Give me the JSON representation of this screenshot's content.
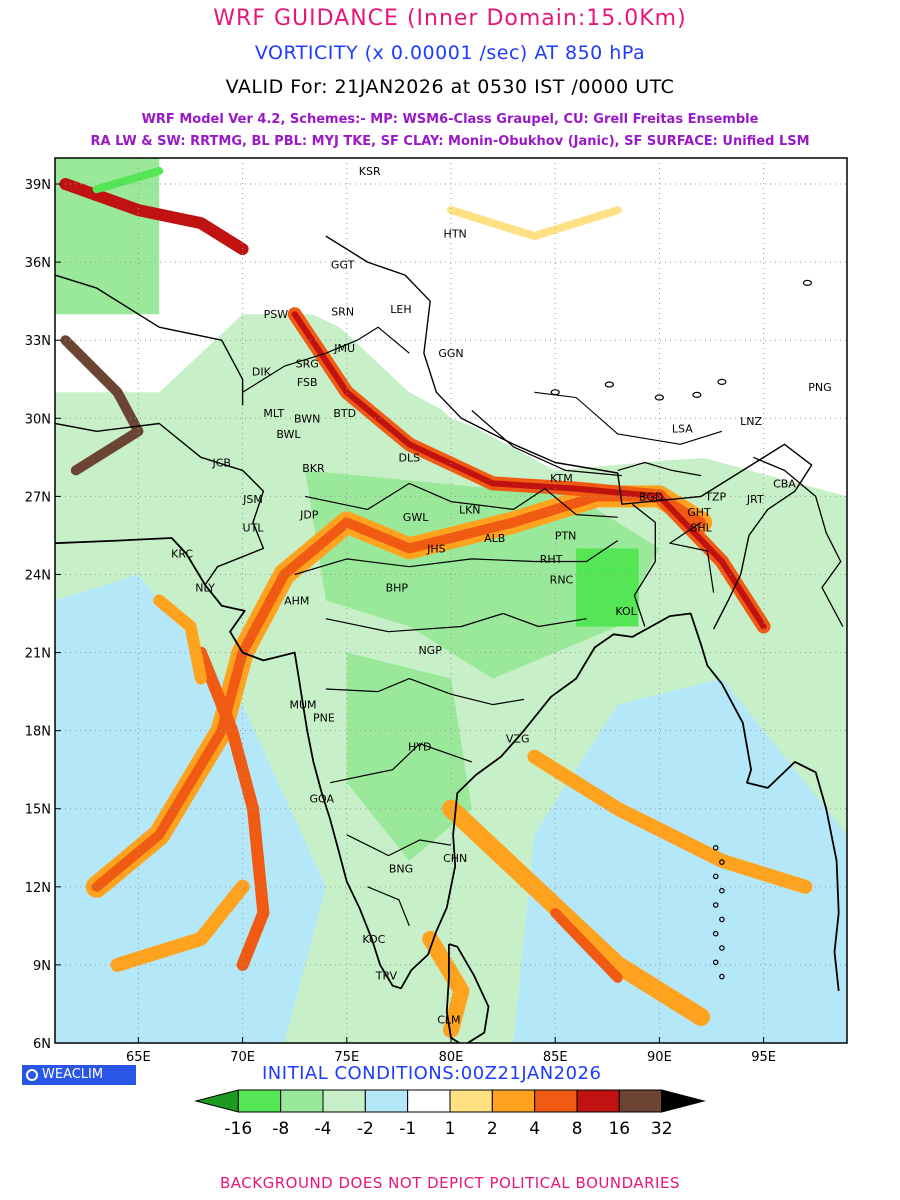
{
  "header": {
    "line1": "WRF GUIDANCE (Inner Domain:15.0Km)",
    "line2": "VORTICITY (x 0.00001 /sec) AT 850 hPa",
    "line3": "VALID For: 21JAN2026 at 0530 IST /0000 UTC",
    "line4": "WRF Model Ver 4.2, Schemes:- MP: WSM6-Class Graupel, CU: Grell Freitas Ensemble",
    "line5": "RA LW & SW: RRTMG, BL PBL: MYJ TKE, SF CLAY: Monin-Obukhov (Janic), SF SURFACE: Unified LSM"
  },
  "map": {
    "lon_range": [
      61,
      99
    ],
    "lat_range": [
      6,
      40
    ],
    "lon_ticks": [
      {
        "value": 65,
        "label": "65E"
      },
      {
        "value": 70,
        "label": "70E"
      },
      {
        "value": 75,
        "label": "75E"
      },
      {
        "value": 80,
        "label": "80E"
      },
      {
        "value": 85,
        "label": "85E"
      },
      {
        "value": 90,
        "label": "90E"
      },
      {
        "value": 95,
        "label": "95E"
      }
    ],
    "lat_ticks": [
      {
        "value": 6,
        "label": "6N"
      },
      {
        "value": 9,
        "label": "9N"
      },
      {
        "value": 12,
        "label": "12N"
      },
      {
        "value": 15,
        "label": "15N"
      },
      {
        "value": 18,
        "label": "18N"
      },
      {
        "value": 21,
        "label": "21N"
      },
      {
        "value": 24,
        "label": "24N"
      },
      {
        "value": 27,
        "label": "27N"
      },
      {
        "value": 30,
        "label": "30N"
      },
      {
        "value": 33,
        "label": "33N"
      },
      {
        "value": 36,
        "label": "36N"
      },
      {
        "value": 39,
        "label": "39N"
      }
    ],
    "stations": [
      {
        "label": "KSR",
        "lon": 76.1,
        "lat": 39.5
      },
      {
        "label": "HTN",
        "lon": 80.2,
        "lat": 37.1
      },
      {
        "label": "GGT",
        "lon": 74.8,
        "lat": 35.9
      },
      {
        "label": "LEH",
        "lon": 77.6,
        "lat": 34.2
      },
      {
        "label": "PSW",
        "lon": 71.6,
        "lat": 34.0
      },
      {
        "label": "SRN",
        "lon": 74.8,
        "lat": 34.1
      },
      {
        "label": "JMU",
        "lon": 74.9,
        "lat": 32.7
      },
      {
        "label": "GGN",
        "lon": 80.0,
        "lat": 32.5
      },
      {
        "label": "DIK",
        "lon": 70.9,
        "lat": 31.8
      },
      {
        "label": "SRG",
        "lon": 73.1,
        "lat": 32.1
      },
      {
        "label": "FSB",
        "lon": 73.1,
        "lat": 31.4
      },
      {
        "label": "PNG",
        "lon": 97.7,
        "lat": 31.2
      },
      {
        "label": "MLT",
        "lon": 71.5,
        "lat": 30.2
      },
      {
        "label": "BWN",
        "lon": 73.1,
        "lat": 30.0
      },
      {
        "label": "BTD",
        "lon": 74.9,
        "lat": 30.2
      },
      {
        "label": "LSA",
        "lon": 91.1,
        "lat": 29.6
      },
      {
        "label": "LNZ",
        "lon": 94.4,
        "lat": 29.9
      },
      {
        "label": "BWL",
        "lon": 72.2,
        "lat": 29.4
      },
      {
        "label": "JCB",
        "lon": 69.0,
        "lat": 28.3
      },
      {
        "label": "DLS",
        "lon": 78.0,
        "lat": 28.5
      },
      {
        "label": "BKR",
        "lon": 73.4,
        "lat": 28.1
      },
      {
        "label": "KTM",
        "lon": 85.3,
        "lat": 27.7
      },
      {
        "label": "CBA",
        "lon": 96.0,
        "lat": 27.5
      },
      {
        "label": "JSM",
        "lon": 70.5,
        "lat": 26.9
      },
      {
        "label": "BGD",
        "lon": 89.6,
        "lat": 27.0
      },
      {
        "label": "TZP",
        "lon": 92.7,
        "lat": 27.0
      },
      {
        "label": "JRT",
        "lon": 94.6,
        "lat": 26.9
      },
      {
        "label": "JDP",
        "lon": 73.2,
        "lat": 26.3
      },
      {
        "label": "GWL",
        "lon": 78.3,
        "lat": 26.2
      },
      {
        "label": "LKN",
        "lon": 80.9,
        "lat": 26.5
      },
      {
        "label": "GHT",
        "lon": 91.9,
        "lat": 26.4
      },
      {
        "label": "UTL",
        "lon": 70.5,
        "lat": 25.8
      },
      {
        "label": "SHL",
        "lon": 92.0,
        "lat": 25.8
      },
      {
        "label": "ALB",
        "lon": 82.1,
        "lat": 25.4
      },
      {
        "label": "PTN",
        "lon": 85.5,
        "lat": 25.5
      },
      {
        "label": "KRC",
        "lon": 67.1,
        "lat": 24.8
      },
      {
        "label": "JHS",
        "lon": 79.3,
        "lat": 25.0
      },
      {
        "label": "RHT",
        "lon": 84.8,
        "lat": 24.6
      },
      {
        "label": "NLY",
        "lon": 68.2,
        "lat": 23.5
      },
      {
        "label": "BHP",
        "lon": 77.4,
        "lat": 23.5
      },
      {
        "label": "AHM",
        "lon": 72.6,
        "lat": 23.0
      },
      {
        "label": "RNC",
        "lon": 85.3,
        "lat": 23.8
      },
      {
        "label": "KOL",
        "lon": 88.4,
        "lat": 22.6
      },
      {
        "label": "NGP",
        "lon": 79.0,
        "lat": 21.1
      },
      {
        "label": "MUM",
        "lon": 72.9,
        "lat": 19.0
      },
      {
        "label": "PNE",
        "lon": 73.9,
        "lat": 18.5
      },
      {
        "label": "VZG",
        "lon": 83.2,
        "lat": 17.7
      },
      {
        "label": "HYD",
        "lon": 78.5,
        "lat": 17.4
      },
      {
        "label": "GOA",
        "lon": 73.8,
        "lat": 15.4
      },
      {
        "label": "CHN",
        "lon": 80.2,
        "lat": 13.1
      },
      {
        "label": "BNG",
        "lon": 77.6,
        "lat": 12.7
      },
      {
        "label": "KOC",
        "lon": 76.3,
        "lat": 10.0
      },
      {
        "label": "TRV",
        "lon": 76.9,
        "lat": 8.6
      },
      {
        "label": "CLM",
        "lon": 79.9,
        "lat": 6.9
      }
    ]
  },
  "colorbar": {
    "colors": [
      "#1e9a23",
      "#55e655",
      "#9ae89a",
      "#c8f0c8",
      "#b4e8f8",
      "#ffffff",
      "#ffe083",
      "#ffa21e",
      "#f05a12",
      "#c01210",
      "#6b4433",
      "#000000"
    ],
    "labels": [
      "-16",
      "-8",
      "-4",
      "-2",
      "-1",
      "1",
      "2",
      "4",
      "8",
      "16",
      "32"
    ]
  },
  "logo_text": "WEACLIM",
  "initial_conditions": "INITIAL CONDITIONS:00Z21JAN2026",
  "footer": "BACKGROUND DOES NOT DEPICT POLITICAL BOUNDARIES"
}
